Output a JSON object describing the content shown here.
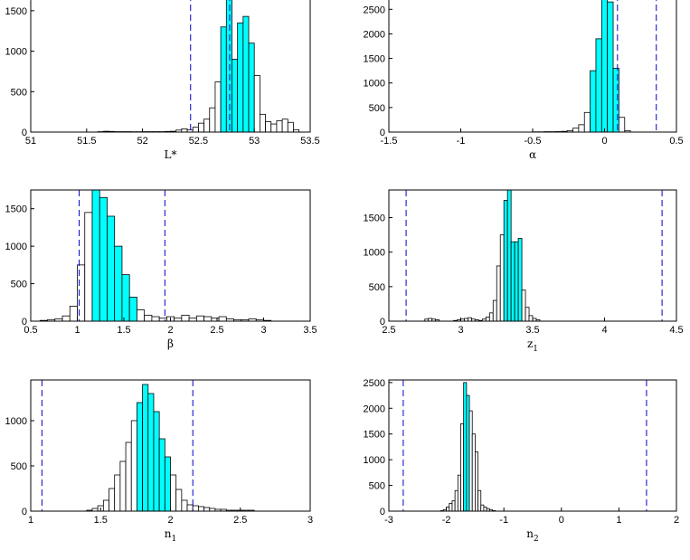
{
  "colors": {
    "highlight": "#00ffff",
    "plain": "#ffffff",
    "edge": "#000000",
    "bound": "#0000cc"
  },
  "chart_data": [
    {
      "type": "bar",
      "xlabel": "L*",
      "xlim": [
        51,
        53.5
      ],
      "ylim": [
        0,
        1700
      ],
      "xticks": [
        "51",
        "51.5",
        "52",
        "52.5",
        "53",
        "53.5"
      ],
      "xtick_values": [
        51,
        51.5,
        52,
        52.5,
        53,
        53.5
      ],
      "yticks": [
        "0",
        "500",
        "1000",
        "1500"
      ],
      "ytick_values": [
        0,
        500,
        1000,
        1500
      ],
      "bin_start": 51.6,
      "bin_width": 0.05,
      "values": [
        5,
        10,
        8,
        5,
        5,
        5,
        4,
        4,
        5,
        5,
        5,
        5,
        8,
        10,
        25,
        40,
        30,
        60,
        110,
        160,
        300,
        620,
        1300,
        1700,
        900,
        1350,
        1430,
        1100,
        700,
        220,
        130,
        100,
        140,
        160,
        120,
        30
      ],
      "highlight": [
        22,
        27
      ],
      "bounds": [
        52.43,
        52.78
      ]
    },
    {
      "type": "bar",
      "xlabel": "α",
      "xlim": [
        -1.5,
        0.5
      ],
      "ylim": [
        0,
        2800
      ],
      "xticks": [
        "-1.5",
        "-1",
        "-0.5",
        "0",
        "0.5"
      ],
      "xtick_values": [
        -1.5,
        -1,
        -0.5,
        0,
        0.5
      ],
      "yticks": [
        "0",
        "500",
        "1000",
        "1500",
        "2000",
        "2500"
      ],
      "ytick_values": [
        0,
        500,
        1000,
        1500,
        2000,
        2500
      ],
      "bin_start": -0.5,
      "bin_width": 0.04,
      "values": [
        5,
        5,
        8,
        8,
        10,
        15,
        30,
        80,
        150,
        400,
        1250,
        1900,
        2800,
        2650,
        1300,
        300,
        30
      ],
      "highlight": [
        10,
        14
      ],
      "bounds": [
        0.09,
        0.36
      ]
    },
    {
      "type": "bar",
      "xlabel": "β",
      "xlim": [
        0.5,
        3.5
      ],
      "ylim": [
        0,
        1750
      ],
      "xticks": [
        "0.5",
        "1",
        "1.5",
        "2",
        "2.5",
        "3",
        "3.5"
      ],
      "xtick_values": [
        0.5,
        1,
        1.5,
        2,
        2.5,
        3,
        3.5
      ],
      "yticks": [
        "0",
        "500",
        "1000",
        "1500"
      ],
      "ytick_values": [
        0,
        500,
        1000,
        1500
      ],
      "bin_start": 0.6,
      "bin_width": 0.08,
      "values": [
        10,
        20,
        30,
        70,
        200,
        750,
        1450,
        1750,
        1650,
        1400,
        1000,
        620,
        320,
        150,
        80,
        60,
        40,
        60,
        40,
        80,
        40,
        70,
        60,
        40,
        60,
        30,
        20,
        20,
        30,
        20,
        10
      ],
      "highlight": [
        7,
        12
      ],
      "bounds": [
        1.02,
        1.94
      ]
    },
    {
      "type": "bar",
      "xlabel": "z",
      "xlabel_sub": "1",
      "xlim": [
        2.5,
        4.5
      ],
      "ylim": [
        0,
        1900
      ],
      "xticks": [
        "2.5",
        "3",
        "3.5",
        "4",
        "4.5"
      ],
      "xtick_values": [
        2.5,
        3,
        3.5,
        4,
        4.5
      ],
      "yticks": [
        "0",
        "500",
        "1000",
        "1500"
      ],
      "ytick_values": [
        0,
        500,
        1000,
        1500
      ],
      "bin_start": 2.75,
      "bin_width": 0.025,
      "values": [
        30,
        40,
        30,
        20,
        0,
        0,
        0,
        0,
        10,
        20,
        30,
        40,
        50,
        30,
        20,
        10,
        30,
        60,
        120,
        300,
        800,
        1250,
        1750,
        1900,
        1150,
        1150,
        1200,
        450,
        200,
        80,
        40,
        20
      ],
      "highlight": [
        22,
        26
      ],
      "bounds": [
        2.62,
        4.4
      ]
    },
    {
      "type": "bar",
      "xlabel": "n",
      "xlabel_sub": "1",
      "xlim": [
        1,
        3
      ],
      "ylim": [
        0,
        1450
      ],
      "xticks": [
        "1",
        "1.5",
        "2",
        "2.5",
        "3"
      ],
      "xtick_values": [
        1,
        1.5,
        2,
        2.5,
        3
      ],
      "yticks": [
        "0",
        "500",
        "1000"
      ],
      "ytick_values": [
        0,
        500,
        1000
      ],
      "bin_start": 1.4,
      "bin_width": 0.04,
      "values": [
        10,
        30,
        60,
        120,
        250,
        400,
        550,
        760,
        1000,
        1200,
        1400,
        1300,
        1100,
        800,
        600,
        400,
        240,
        120,
        70,
        60,
        50,
        40,
        30,
        20,
        20,
        10,
        10,
        10,
        10,
        10
      ],
      "highlight": [
        9,
        14
      ],
      "bounds": [
        1.08,
        2.16
      ]
    },
    {
      "type": "bar",
      "xlabel": "n",
      "xlabel_sub": "2",
      "xlim": [
        -3,
        2
      ],
      "ylim": [
        0,
        2550
      ],
      "xticks": [
        "-3",
        "-2",
        "-1",
        "0",
        "1",
        "2"
      ],
      "xtick_values": [
        -3,
        -2,
        -1,
        0,
        1,
        2
      ],
      "yticks": [
        "0",
        "500",
        "1000",
        "1500",
        "2000",
        "2500"
      ],
      "ytick_values": [
        0,
        500,
        1000,
        1500,
        2000,
        2500
      ],
      "bin_start": -2.1,
      "bin_width": 0.05,
      "values": [
        10,
        30,
        80,
        150,
        200,
        400,
        700,
        1700,
        2500,
        2250,
        1950,
        1500,
        1150,
        400,
        120,
        80,
        50,
        30,
        10
      ],
      "highlight": [
        8,
        9
      ],
      "bounds": [
        -2.75,
        1.48
      ]
    }
  ]
}
